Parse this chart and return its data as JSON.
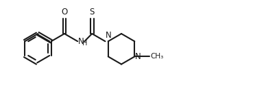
{
  "bg_color": "#ffffff",
  "line_color": "#1a1a1a",
  "line_width": 1.5,
  "font_size": 8.5,
  "figsize": [
    3.88,
    1.34
  ],
  "dpi": 100,
  "xlim": [
    0.0,
    10.5
  ],
  "ylim": [
    0.3,
    4.0
  ]
}
